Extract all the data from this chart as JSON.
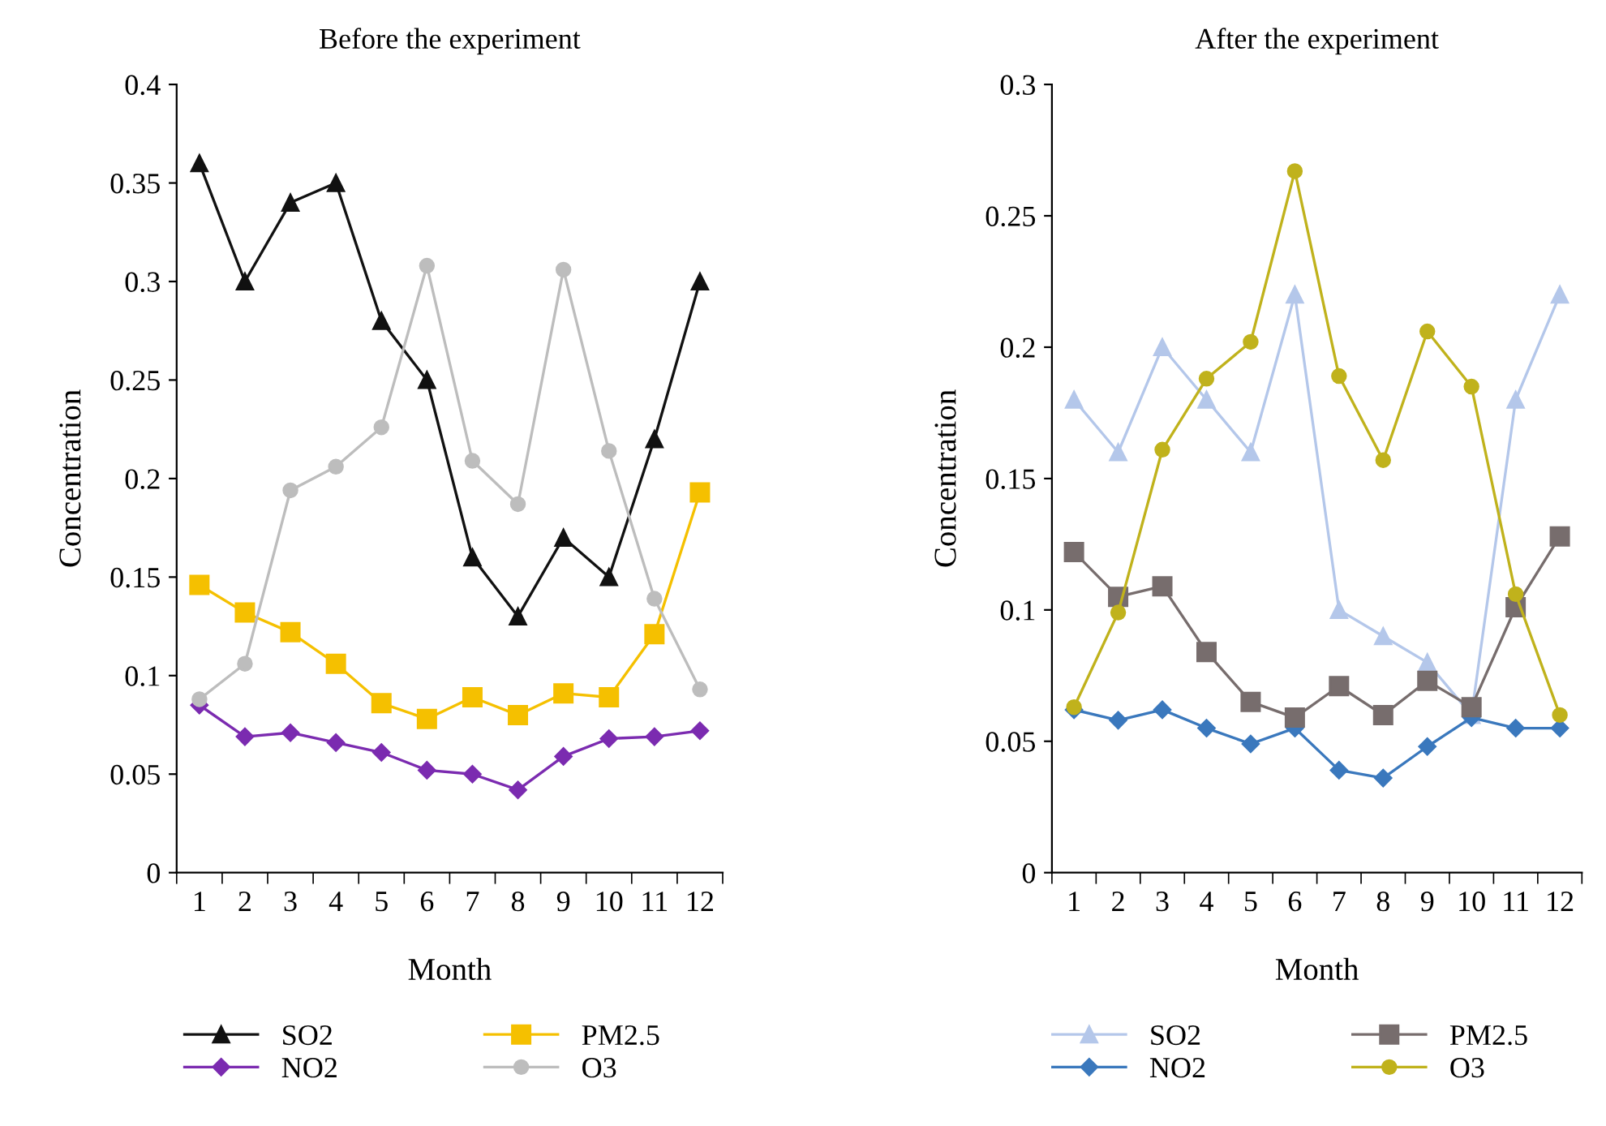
{
  "chart_data": [
    {
      "type": "line",
      "title": "Before the experiment",
      "xlabel": "Month",
      "ylabel": "Concentration",
      "categories": [
        "1",
        "2",
        "3",
        "4",
        "5",
        "6",
        "7",
        "8",
        "9",
        "10",
        "11",
        "12"
      ],
      "ylim": [
        0,
        0.4
      ],
      "yticks": [
        0,
        0.05,
        0.1,
        0.15,
        0.2,
        0.25,
        0.3,
        0.35,
        0.4
      ],
      "grid": false,
      "legend": "bottom",
      "series": [
        {
          "name": "SO2",
          "color": "#111111",
          "marker": "triangle",
          "values": [
            0.36,
            0.3,
            0.34,
            0.35,
            0.28,
            0.25,
            0.16,
            0.13,
            0.17,
            0.15,
            0.22,
            0.3
          ]
        },
        {
          "name": "NO2",
          "color": "#7b2bb0",
          "marker": "diamond",
          "values": [
            0.085,
            0.069,
            0.071,
            0.066,
            0.061,
            0.052,
            0.05,
            0.042,
            0.059,
            0.068,
            0.069,
            0.072
          ]
        },
        {
          "name": "PM2.5",
          "color": "#f5c000",
          "marker": "square",
          "values": [
            0.146,
            0.132,
            0.122,
            0.106,
            0.086,
            0.078,
            0.089,
            0.08,
            0.091,
            0.089,
            0.121,
            0.193
          ]
        },
        {
          "name": "O3",
          "color": "#bdbdbd",
          "marker": "circle",
          "values": [
            0.088,
            0.106,
            0.194,
            0.206,
            0.226,
            0.308,
            0.209,
            0.187,
            0.306,
            0.214,
            0.139,
            0.093
          ]
        }
      ]
    },
    {
      "type": "line",
      "title": "After the experiment",
      "xlabel": "Month",
      "ylabel": "Concentration",
      "categories": [
        "1",
        "2",
        "3",
        "4",
        "5",
        "6",
        "7",
        "8",
        "9",
        "10",
        "11",
        "12"
      ],
      "ylim": [
        0,
        0.3
      ],
      "yticks": [
        0,
        0.05,
        0.1,
        0.15,
        0.2,
        0.25,
        0.3
      ],
      "grid": false,
      "legend": "bottom",
      "series": [
        {
          "name": "SO2",
          "color": "#b4c7ea",
          "marker": "triangle",
          "values": [
            0.18,
            0.16,
            0.2,
            0.18,
            0.16,
            0.22,
            0.1,
            0.09,
            0.08,
            0.06,
            0.18,
            0.22
          ]
        },
        {
          "name": "NO2",
          "color": "#3a78bd",
          "marker": "diamond",
          "values": [
            0.062,
            0.058,
            0.062,
            0.055,
            0.049,
            0.055,
            0.039,
            0.036,
            0.048,
            0.059,
            0.055,
            0.055
          ]
        },
        {
          "name": "PM2.5",
          "color": "#776d6d",
          "marker": "square",
          "values": [
            0.122,
            0.105,
            0.109,
            0.084,
            0.065,
            0.059,
            0.071,
            0.06,
            0.073,
            0.063,
            0.101,
            0.128
          ]
        },
        {
          "name": "O3",
          "color": "#c0b21c",
          "marker": "circle",
          "values": [
            0.063,
            0.099,
            0.161,
            0.188,
            0.202,
            0.267,
            0.189,
            0.157,
            0.206,
            0.185,
            0.106,
            0.06
          ]
        }
      ]
    }
  ]
}
